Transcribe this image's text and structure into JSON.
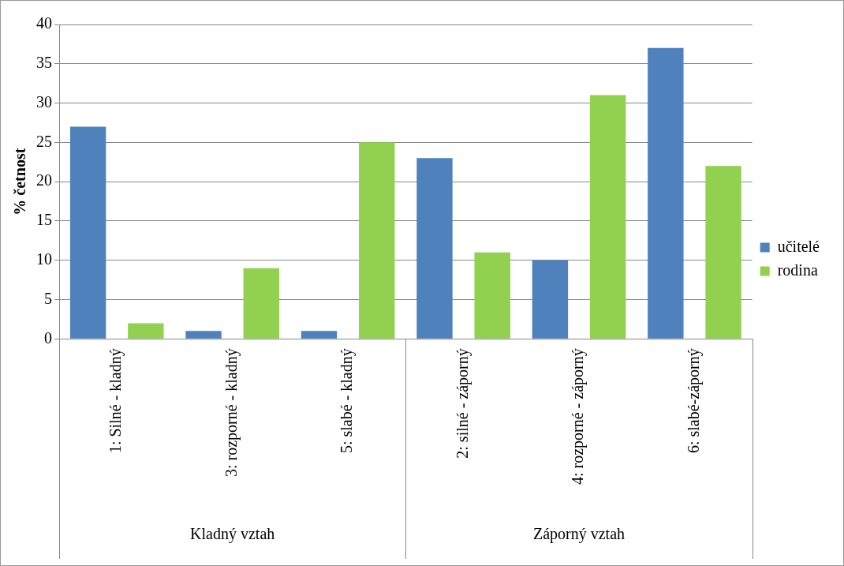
{
  "chart_data": {
    "type": "bar",
    "ylabel": "% četnost",
    "categories": [
      "1: Silné - kladný",
      "3: rozporné - kladný",
      "5: slabé - kladný",
      "2: silné - záporný",
      "4: rozporné - záporný",
      "6: slabé-záporný"
    ],
    "series": [
      {
        "name": "učitelé",
        "color": "#4f81bd",
        "values": [
          27,
          1,
          1,
          23,
          10,
          37
        ]
      },
      {
        "name": "rodina",
        "color": "#92d050",
        "values": [
          2,
          9,
          25,
          11,
          31,
          22
        ]
      }
    ],
    "annotations": [
      "Kladný vztah",
      "Záporný vztah"
    ],
    "ylim": [
      0,
      40
    ],
    "yticks": [
      0,
      5,
      10,
      15,
      20,
      25,
      30,
      35,
      40
    ],
    "grid": "y",
    "legend": "right"
  }
}
